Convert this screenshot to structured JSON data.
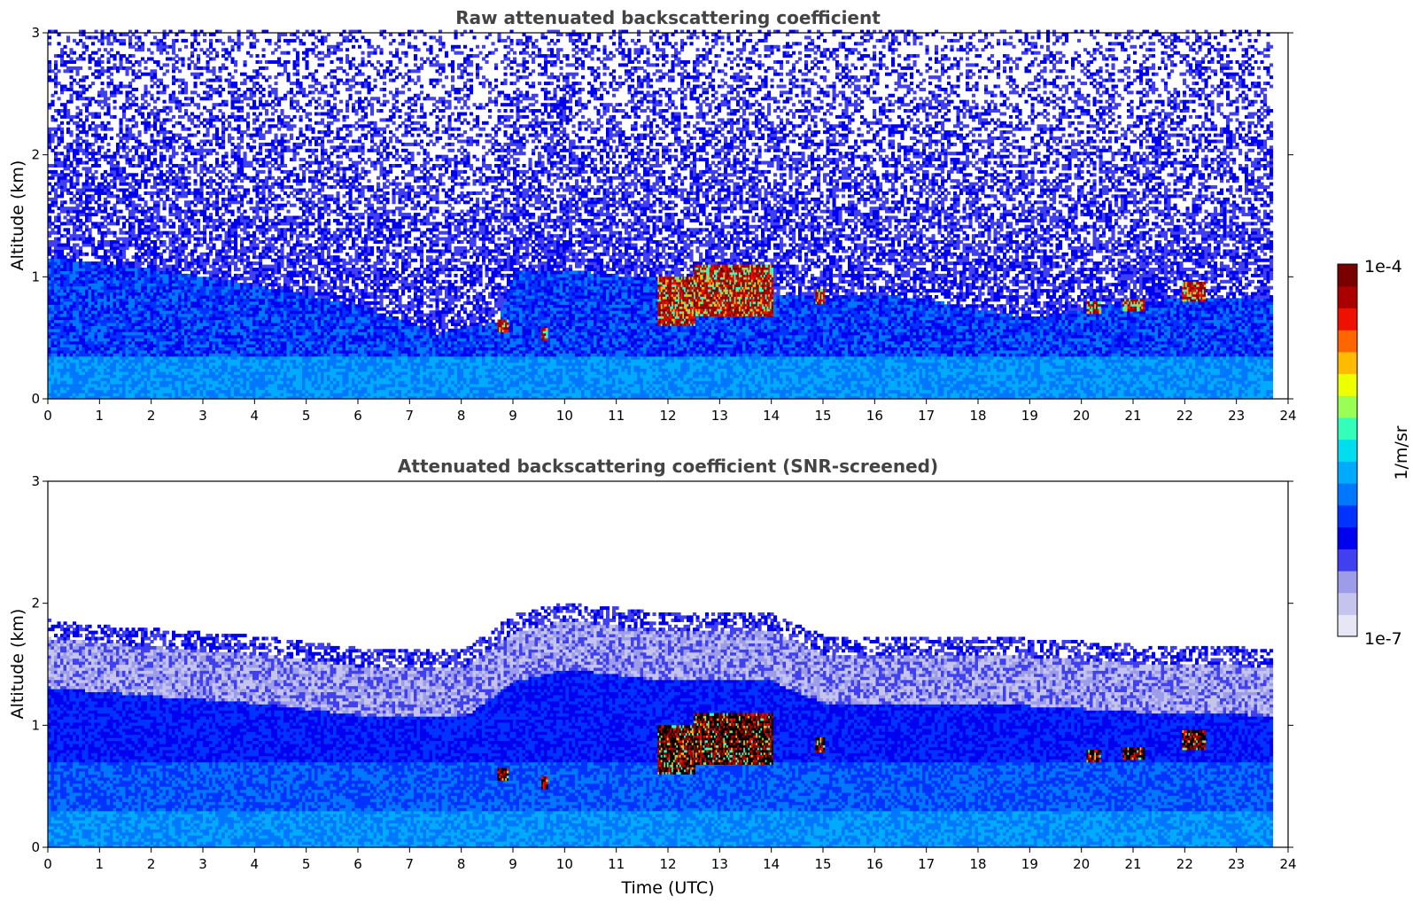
{
  "chart_data": [
    {
      "type": "heatmap",
      "title": "Raw attenuated backscattering coefficient",
      "xlabel": "",
      "ylabel": "Altitude (km)",
      "xlim": [
        0,
        24
      ],
      "ylim": [
        0,
        3
      ],
      "x_ticks": [
        "0",
        "1",
        "2",
        "3",
        "4",
        "5",
        "6",
        "7",
        "8",
        "9",
        "10",
        "11",
        "12",
        "13",
        "14",
        "15",
        "16",
        "17",
        "18",
        "19",
        "20",
        "21",
        "22",
        "23",
        "24"
      ],
      "y_ticks": [
        "0",
        "1",
        "2",
        "3"
      ],
      "data_end_time": 23.65,
      "features": {
        "boundary_layer_top_km": [
          [
            0,
            1.15
          ],
          [
            2,
            1.05
          ],
          [
            4,
            0.92
          ],
          [
            6,
            0.75
          ],
          [
            7.5,
            0.52
          ],
          [
            8.7,
            0.62
          ],
          [
            9,
            1.05
          ],
          [
            10,
            1.05
          ],
          [
            11,
            1.0
          ],
          [
            12,
            1.0
          ],
          [
            13,
            1.0
          ],
          [
            14,
            0.85
          ],
          [
            15,
            0.82
          ],
          [
            16,
            0.85
          ],
          [
            17,
            0.8
          ],
          [
            18,
            0.72
          ],
          [
            19,
            0.65
          ],
          [
            20,
            0.72
          ],
          [
            21,
            0.78
          ],
          [
            22,
            0.82
          ],
          [
            23.65,
            0.8
          ]
        ],
        "cloud_patches": [
          {
            "t0": 8.7,
            "t1": 8.9,
            "z0": 0.55,
            "z1": 0.65
          },
          {
            "t0": 9.55,
            "t1": 9.65,
            "z0": 0.48,
            "z1": 0.58
          },
          {
            "t0": 11.8,
            "t1": 12.5,
            "z0": 0.6,
            "z1": 1.0
          },
          {
            "t0": 12.5,
            "t1": 14.0,
            "z0": 0.68,
            "z1": 1.1
          },
          {
            "t0": 14.85,
            "t1": 15.0,
            "z0": 0.78,
            "z1": 0.9
          },
          {
            "t0": 20.1,
            "t1": 20.35,
            "z0": 0.7,
            "z1": 0.8
          },
          {
            "t0": 20.8,
            "t1": 21.2,
            "z0": 0.72,
            "z1": 0.82
          },
          {
            "t0": 21.95,
            "t1": 22.4,
            "z0": 0.8,
            "z1": 0.95
          }
        ]
      }
    },
    {
      "type": "heatmap",
      "title": "Attenuated backscattering coefficient (SNR-screened)",
      "xlabel": "Time (UTC)",
      "ylabel": "Altitude (km)",
      "xlim": [
        0,
        24
      ],
      "ylim": [
        0,
        3
      ],
      "x_ticks": [
        "0",
        "1",
        "2",
        "3",
        "4",
        "5",
        "6",
        "7",
        "8",
        "9",
        "10",
        "11",
        "12",
        "13",
        "14",
        "15",
        "16",
        "17",
        "18",
        "19",
        "20",
        "21",
        "22",
        "23",
        "24"
      ],
      "y_ticks": [
        "0",
        "1",
        "2",
        "3"
      ],
      "data_end_time": 23.65,
      "features": {
        "screened_top_km": [
          [
            0,
            1.85
          ],
          [
            2,
            1.78
          ],
          [
            4,
            1.72
          ],
          [
            6,
            1.62
          ],
          [
            8,
            1.6
          ],
          [
            9,
            1.9
          ],
          [
            10,
            2.0
          ],
          [
            11,
            1.95
          ],
          [
            12,
            1.9
          ],
          [
            14,
            1.9
          ],
          [
            15,
            1.72
          ],
          [
            17,
            1.72
          ],
          [
            19,
            1.7
          ],
          [
            21,
            1.65
          ],
          [
            23.65,
            1.62
          ]
        ]
      }
    }
  ],
  "colorbar": {
    "label": "1/m/sr",
    "max_label": "1e-4",
    "min_label": "1e-7",
    "scale": "log",
    "range": [
      1e-07,
      0.0001
    ],
    "colors": [
      "#e6e6f5",
      "#c4c4ee",
      "#9c9ce8",
      "#4040f0",
      "#0000f0",
      "#0033ff",
      "#0077ff",
      "#00aaff",
      "#00ddee",
      "#33ffbb",
      "#99ff55",
      "#eeff00",
      "#ffbb00",
      "#ff6600",
      "#ee1100",
      "#aa0000",
      "#7a0000"
    ]
  }
}
